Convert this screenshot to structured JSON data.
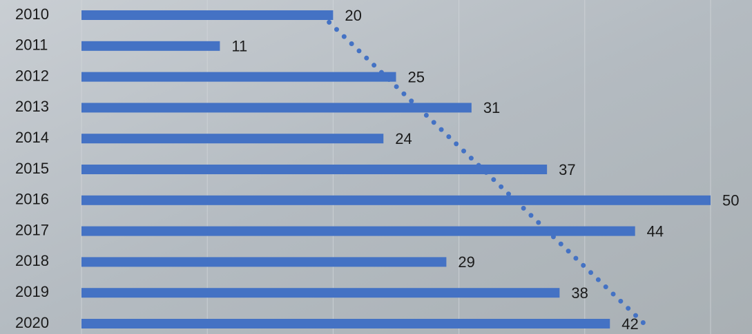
{
  "chart_data": {
    "type": "bar",
    "orientation": "horizontal",
    "categories": [
      "2010",
      "2011",
      "2012",
      "2013",
      "2014",
      "2015",
      "2016",
      "2017",
      "2018",
      "2019",
      "2020"
    ],
    "values": [
      20,
      11,
      25,
      31,
      24,
      37,
      50,
      44,
      29,
      38,
      42
    ],
    "color": "#4472c4",
    "xlim": [
      0,
      50
    ],
    "xticks": [
      0,
      10,
      20,
      30,
      40,
      50
    ],
    "grid": true,
    "trendline": "linear"
  }
}
